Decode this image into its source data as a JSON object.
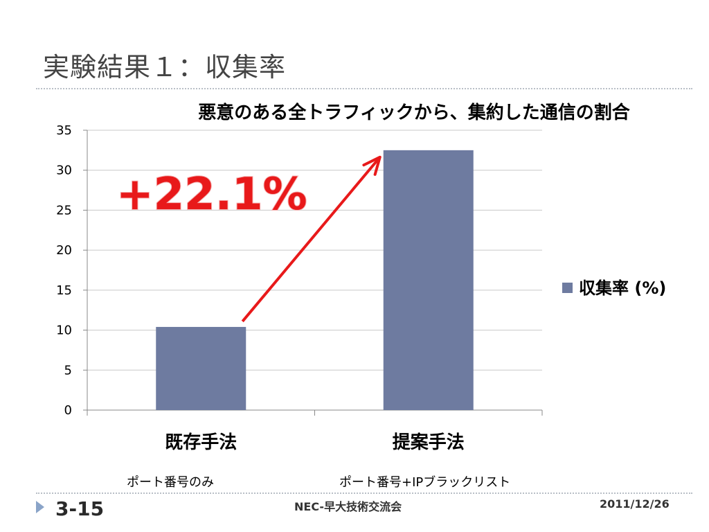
{
  "slide": {
    "title": "実験結果１：収集率",
    "slide_number": "3-15",
    "footer_center": "NEC-早大技術交流会",
    "footer_date": "2011/12/26"
  },
  "sub_labels": [
    "ポート番号のみ",
    "ポート番号+IPブラックリスト"
  ],
  "colors": {
    "bar": "#6e7ba0",
    "annotation": "#e8191a",
    "arrow": "#e8191a",
    "grid": "#c8c8c8",
    "title_text": "#444444"
  },
  "chart_data": {
    "type": "bar",
    "title": "悪意のある全トラフィックから、集約した通信の割合",
    "categories": [
      "既存手法",
      "提案手法"
    ],
    "series": [
      {
        "name": "収集率 (%)",
        "values": [
          10.4,
          32.5
        ]
      }
    ],
    "ylim": [
      0,
      35
    ],
    "yticks": [
      0,
      5,
      10,
      15,
      20,
      25,
      30,
      35
    ],
    "grid": true,
    "legend": "right",
    "annotation": "+22.1%",
    "xlabel": "",
    "ylabel": ""
  }
}
